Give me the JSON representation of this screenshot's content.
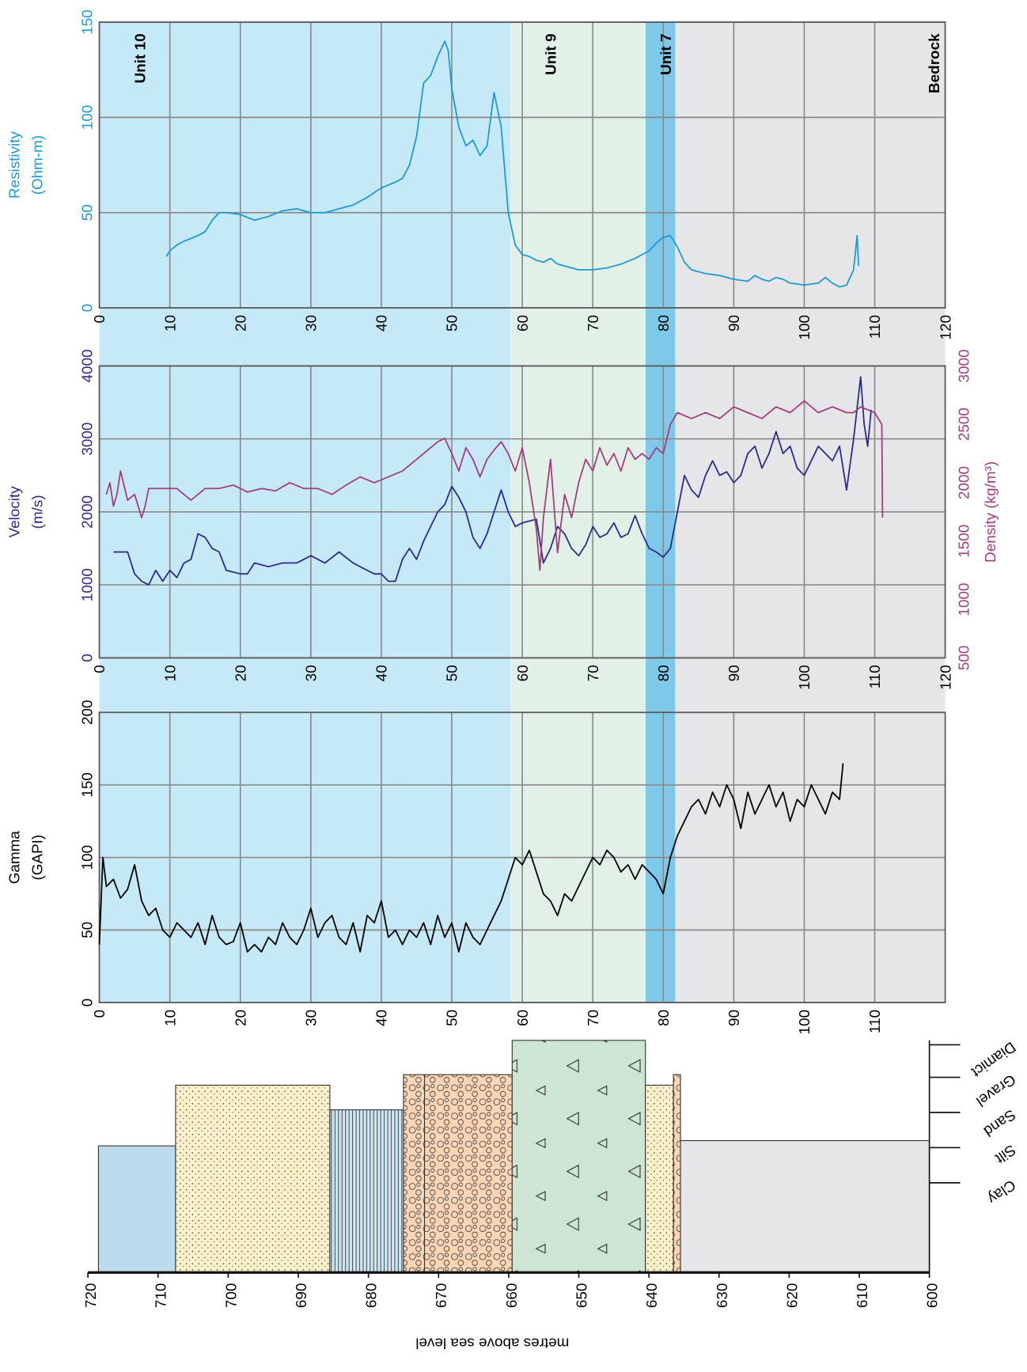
{
  "chart_data": [
    {
      "type": "line",
      "ylabel": [
        "Resistivity",
        "(Ohm-m)"
      ],
      "color": "#1a9ad6",
      "xlim": [
        0,
        120
      ],
      "xticks": [
        0,
        10,
        20,
        30,
        40,
        50,
        60,
        70,
        80,
        90,
        100,
        110,
        120
      ],
      "ylim": [
        0,
        150
      ],
      "yticks": [
        0,
        50,
        100,
        150
      ],
      "grid": true,
      "bands": [
        {
          "label": "Unit 10",
          "from": 0,
          "to": 58.3,
          "color": "#c6e9f8"
        },
        {
          "label": "Unit 9",
          "from": 58.3,
          "to": 77.5,
          "color": "#e2f1e7"
        },
        {
          "label": "Unit 7",
          "from": 77.5,
          "to": 81.7,
          "color": "#7ec8ea"
        },
        {
          "label": "Bedrock",
          "from": 81.7,
          "to": 120,
          "color": "#e6e6e8"
        }
      ],
      "x": [
        9.5,
        10,
        11,
        12,
        14,
        15,
        16,
        17,
        18,
        20,
        22,
        24,
        26,
        28,
        30,
        32,
        34,
        36,
        38,
        40,
        42,
        43,
        44,
        45,
        46,
        47,
        48,
        49,
        49.5,
        50,
        51,
        52,
        53,
        54,
        55,
        56,
        57,
        58,
        59,
        60,
        61,
        62,
        63,
        64,
        65,
        66,
        68,
        70,
        72,
        74,
        76,
        78,
        79,
        80,
        81,
        82,
        83,
        84,
        86,
        88,
        90,
        92,
        93,
        94,
        95,
        96,
        97,
        98,
        100,
        102,
        103,
        104,
        105,
        106,
        107,
        107.5,
        107.7
      ],
      "values": [
        27,
        30,
        33,
        35,
        38,
        40,
        46,
        50,
        50,
        49,
        46,
        48,
        51,
        52,
        50,
        50,
        52,
        54,
        58,
        63,
        66,
        68,
        75,
        90,
        118,
        122,
        132,
        140,
        135,
        115,
        95,
        85,
        88,
        80,
        85,
        113,
        95,
        50,
        33,
        28,
        27,
        25,
        24,
        26,
        23,
        22,
        20,
        20,
        21,
        23,
        26,
        30,
        34,
        37,
        38,
        32,
        24,
        20,
        18,
        17,
        15,
        14,
        17,
        15,
        14,
        16,
        15,
        13,
        12,
        13,
        16,
        13,
        11,
        12,
        20,
        38,
        22
      ]
    },
    {
      "type": "line",
      "ylabel": [
        "Velocity",
        "(m/s)"
      ],
      "y2label": "Density (kg/m³)",
      "xlim": [
        0,
        120
      ],
      "xticks": [
        0,
        10,
        20,
        30,
        40,
        50,
        60,
        70,
        80,
        90,
        100,
        110,
        120
      ],
      "ylim": [
        0,
        4000
      ],
      "yticks": [
        0,
        1000,
        2000,
        3000,
        4000
      ],
      "y2lim": [
        500,
        3000
      ],
      "y2ticks": [
        500,
        1000,
        1500,
        2000,
        2500,
        3000
      ],
      "grid": true,
      "series": [
        {
          "color": "#2b2a8c",
          "x": [
            2,
            4,
            5,
            6,
            7,
            8,
            9,
            10,
            11,
            12,
            13,
            14,
            15,
            16,
            17,
            18,
            20,
            21,
            22,
            24,
            26,
            28,
            30,
            32,
            34,
            36,
            38,
            39,
            40,
            41,
            42,
            43,
            44,
            45,
            46,
            47,
            48,
            49,
            50,
            51,
            52,
            53,
            54,
            55,
            56,
            57,
            58,
            59,
            60,
            62,
            63,
            64,
            65,
            66,
            67,
            68,
            69,
            70,
            71,
            72,
            73,
            74,
            75,
            76,
            77,
            78,
            79,
            80,
            81,
            82,
            83,
            84,
            85,
            86,
            87,
            88,
            89,
            90,
            91,
            92,
            93,
            94,
            95,
            96,
            97,
            98,
            99,
            100,
            101,
            102,
            103,
            104,
            105,
            106,
            107,
            108,
            108.5,
            109,
            109.5
          ],
          "values": [
            1450,
            1450,
            1150,
            1050,
            1000,
            1200,
            1050,
            1200,
            1100,
            1300,
            1350,
            1700,
            1650,
            1500,
            1450,
            1200,
            1150,
            1150,
            1300,
            1250,
            1300,
            1300,
            1400,
            1300,
            1450,
            1300,
            1200,
            1150,
            1150,
            1050,
            1050,
            1350,
            1500,
            1350,
            1600,
            1800,
            2000,
            2100,
            2350,
            2200,
            2000,
            1650,
            1500,
            1700,
            2000,
            2300,
            2000,
            1800,
            1850,
            1900,
            1300,
            1500,
            1800,
            1700,
            1500,
            1400,
            1550,
            1800,
            1650,
            1700,
            1850,
            1650,
            1700,
            1950,
            1700,
            1500,
            1450,
            1380,
            1500,
            2000,
            2500,
            2300,
            2200,
            2500,
            2700,
            2500,
            2550,
            2400,
            2500,
            2800,
            2900,
            2600,
            2800,
            3100,
            2800,
            2900,
            2600,
            2500,
            2700,
            2900,
            2800,
            2700,
            2900,
            2300,
            3000,
            3850,
            3200,
            2900,
            3400
          ]
        },
        {
          "color": "#a43c7e",
          "axis": "y2",
          "x": [
            1,
            1.5,
            2,
            2.5,
            3,
            4,
            5,
            6,
            6.5,
            7,
            9,
            11,
            13,
            15,
            17,
            19,
            21,
            23,
            25,
            27,
            29,
            31,
            33,
            35,
            37,
            39,
            41,
            43,
            45,
            47,
            48,
            49,
            50,
            51,
            52,
            53,
            54,
            55,
            56,
            57,
            58,
            59,
            60,
            61,
            62,
            62.5,
            63,
            64,
            65,
            66,
            67,
            68,
            69,
            70,
            71,
            72,
            73,
            74,
            75,
            76,
            77,
            78,
            79,
            80,
            81,
            82,
            84,
            86,
            88,
            90,
            92,
            94,
            96,
            98,
            100,
            102,
            104,
            106,
            107,
            108,
            110,
            111,
            111.1
          ],
          "values": [
            1900,
            2000,
            1800,
            1900,
            2100,
            1850,
            1900,
            1700,
            1800,
            1950,
            1950,
            1950,
            1850,
            1950,
            1950,
            1980,
            1920,
            1950,
            1930,
            2000,
            1950,
            1950,
            1900,
            1980,
            2050,
            2000,
            2050,
            2100,
            2200,
            2300,
            2350,
            2380,
            2250,
            2100,
            2300,
            2200,
            2050,
            2200,
            2280,
            2350,
            2250,
            2100,
            2300,
            2000,
            1600,
            1250,
            1700,
            2200,
            1400,
            1900,
            1700,
            2000,
            2200,
            2100,
            2300,
            2150,
            2250,
            2100,
            2300,
            2200,
            2250,
            2200,
            2300,
            2250,
            2500,
            2600,
            2550,
            2600,
            2550,
            2650,
            2600,
            2550,
            2650,
            2600,
            2700,
            2600,
            2650,
            2600,
            2600,
            2650,
            2600,
            2500,
            1700
          ]
        }
      ]
    },
    {
      "type": "line",
      "ylabel": [
        "Gamma",
        "(GAPI)"
      ],
      "color": "#000000",
      "xlim": [
        0,
        120
      ],
      "xticks": [
        0,
        10,
        20,
        30,
        40,
        50,
        60,
        70,
        80,
        90,
        100,
        110
      ],
      "ylim": [
        0,
        200
      ],
      "yticks": [
        0,
        50,
        100,
        150,
        200
      ],
      "grid": true,
      "x": [
        0,
        0.5,
        1,
        2,
        3,
        4,
        5,
        6,
        7,
        8,
        9,
        10,
        11,
        12,
        13,
        14,
        15,
        16,
        17,
        18,
        19,
        20,
        21,
        22,
        23,
        24,
        25,
        26,
        27,
        28,
        29,
        30,
        31,
        32,
        33,
        34,
        35,
        36,
        37,
        38,
        39,
        40,
        41,
        42,
        43,
        44,
        45,
        46,
        47,
        48,
        49,
        50,
        51,
        52,
        53,
        54,
        55,
        56,
        57,
        58,
        59,
        60,
        61,
        62,
        63,
        64,
        65,
        66,
        67,
        68,
        69,
        70,
        71,
        72,
        73,
        74,
        75,
        76,
        77,
        78,
        79,
        80,
        81,
        82,
        83,
        84,
        85,
        86,
        87,
        88,
        89,
        90,
        91,
        92,
        93,
        94,
        95,
        96,
        97,
        98,
        99,
        100,
        101,
        102,
        103,
        104,
        105,
        105.5
      ],
      "values": [
        40,
        100,
        80,
        85,
        72,
        78,
        95,
        70,
        60,
        65,
        50,
        45,
        55,
        50,
        45,
        55,
        40,
        60,
        45,
        40,
        42,
        55,
        35,
        40,
        35,
        45,
        40,
        55,
        45,
        40,
        50,
        65,
        45,
        55,
        60,
        45,
        40,
        55,
        35,
        60,
        55,
        70,
        45,
        50,
        40,
        50,
        45,
        55,
        40,
        60,
        45,
        55,
        35,
        55,
        45,
        40,
        50,
        60,
        70,
        85,
        100,
        95,
        105,
        90,
        75,
        70,
        60,
        75,
        70,
        80,
        90,
        100,
        95,
        105,
        100,
        90,
        95,
        85,
        95,
        90,
        85,
        75,
        100,
        115,
        125,
        135,
        140,
        130,
        145,
        135,
        150,
        140,
        120,
        145,
        130,
        140,
        150,
        135,
        145,
        125,
        140,
        135,
        150,
        140,
        130,
        145,
        140,
        165
      ]
    },
    {
      "type": "lithology",
      "xlabel": "metres above sea level",
      "xlim": [
        720,
        600
      ],
      "xticks": [
        720,
        710,
        700,
        690,
        680,
        670,
        660,
        650,
        640,
        630,
        620,
        610,
        600
      ],
      "categories": [
        "Clay",
        "Silt",
        "Sand",
        "Gravel",
        "Diamict"
      ],
      "layers": [
        {
          "lithology": "Clay",
          "from": 718.5,
          "to": 707.5
        },
        {
          "lithology": "Sand",
          "from": 707.5,
          "to": 685.5
        },
        {
          "lithology": "Silt",
          "from": 685.5,
          "to": 675
        },
        {
          "lithology": "Gravel",
          "from": 675,
          "to": 672
        },
        {
          "lithology": "Gravel",
          "from": 672,
          "to": 659.5
        },
        {
          "lithology": "Diamict",
          "from": 659.5,
          "to": 640.5
        },
        {
          "lithology": "Sand",
          "from": 640.5,
          "to": 636.5
        },
        {
          "lithology": "Gravel",
          "from": 636.5,
          "to": 635.5
        },
        {
          "lithology": "Bedrock",
          "from": 635.5,
          "to": 600
        }
      ]
    }
  ]
}
